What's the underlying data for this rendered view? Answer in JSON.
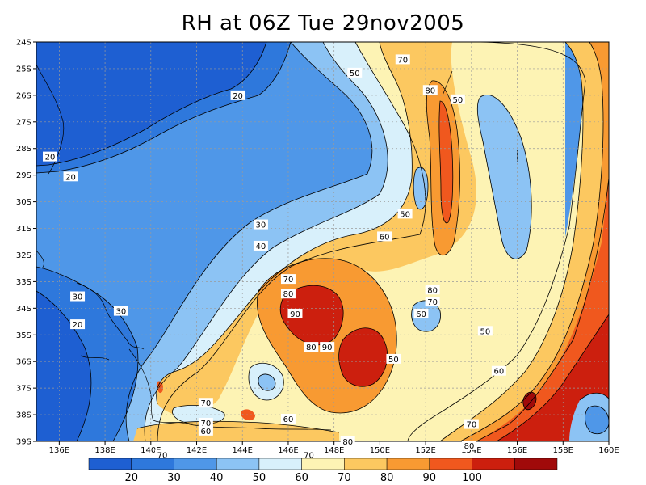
{
  "chart_data": {
    "type": "heatmap",
    "title": "RH at 06Z Tue 29nov2005",
    "xticks": [
      "136E",
      "138E",
      "140E",
      "142E",
      "144E",
      "146E",
      "148E",
      "150E",
      "152E",
      "154E",
      "156E",
      "158E",
      "160E"
    ],
    "yticks": [
      "24S",
      "25S",
      "26S",
      "27S",
      "28S",
      "29S",
      "30S",
      "31S",
      "32S",
      "33S",
      "34S",
      "35S",
      "36S",
      "37S",
      "38S",
      "39S"
    ],
    "xlim": [
      135,
      160
    ],
    "ylim": [
      -39,
      -24
    ],
    "grid": true,
    "colorbar": {
      "labels": [
        "20",
        "30",
        "40",
        "50",
        "60",
        "70",
        "80",
        "90",
        "100"
      ],
      "colors": [
        "#1e5fd2",
        "#2e78dc",
        "#4f97e8",
        "#8cc3f4",
        "#d8f0fb",
        "#fdf3b4",
        "#fcc860",
        "#f89a32",
        "#f0581e",
        "#cc1f0e",
        "#a00a0a"
      ]
    },
    "contour_labels": [
      {
        "text": "20",
        "lon": 143.8,
        "lat": -26.0
      },
      {
        "text": "20",
        "lon": 135.6,
        "lat": -28.3
      },
      {
        "text": "20",
        "lon": 136.5,
        "lat": -29.05
      },
      {
        "text": "30",
        "lon": 144.8,
        "lat": -30.85
      },
      {
        "text": "40",
        "lon": 144.8,
        "lat": -31.65
      },
      {
        "text": "30",
        "lon": 136.8,
        "lat": -33.55
      },
      {
        "text": "30",
        "lon": 138.7,
        "lat": -34.1
      },
      {
        "text": "20",
        "lon": 136.8,
        "lat": -34.6
      },
      {
        "text": "50",
        "lon": 148.9,
        "lat": -25.15
      },
      {
        "text": "70",
        "lon": 151.0,
        "lat": -24.65
      },
      {
        "text": "80",
        "lon": 152.2,
        "lat": -25.8
      },
      {
        "text": "50",
        "lon": 153.4,
        "lat": -26.15
      },
      {
        "text": "50",
        "lon": 151.1,
        "lat": -30.45
      },
      {
        "text": "60",
        "lon": 150.2,
        "lat": -31.3
      },
      {
        "text": "70",
        "lon": 146.0,
        "lat": -32.9
      },
      {
        "text": "80",
        "lon": 146.0,
        "lat": -33.45
      },
      {
        "text": "90",
        "lon": 146.3,
        "lat": -34.2
      },
      {
        "text": "80",
        "lon": 147.0,
        "lat": -35.45
      },
      {
        "text": "90",
        "lon": 147.7,
        "lat": -35.45
      },
      {
        "text": "80",
        "lon": 152.3,
        "lat": -33.3
      },
      {
        "text": "70",
        "lon": 152.3,
        "lat": -33.75
      },
      {
        "text": "60",
        "lon": 151.8,
        "lat": -34.2
      },
      {
        "text": "50",
        "lon": 150.6,
        "lat": -35.9
      },
      {
        "text": "50",
        "lon": 154.6,
        "lat": -34.85
      },
      {
        "text": "60",
        "lon": 155.2,
        "lat": -36.35
      },
      {
        "text": "70",
        "lon": 142.4,
        "lat": -37.55
      },
      {
        "text": "70",
        "lon": 142.4,
        "lat": -38.3
      },
      {
        "text": "60",
        "lon": 142.4,
        "lat": -38.6
      },
      {
        "text": "60",
        "lon": 146.0,
        "lat": -38.15
      },
      {
        "text": "80",
        "lon": 148.6,
        "lat": -39.0
      },
      {
        "text": "70",
        "lon": 146.9,
        "lat": -39.5
      },
      {
        "text": "70",
        "lon": 140.5,
        "lat": -39.5
      },
      {
        "text": "70",
        "lon": 154.0,
        "lat": -38.35
      },
      {
        "text": "80",
        "lon": 153.9,
        "lat": -39.15
      }
    ]
  }
}
